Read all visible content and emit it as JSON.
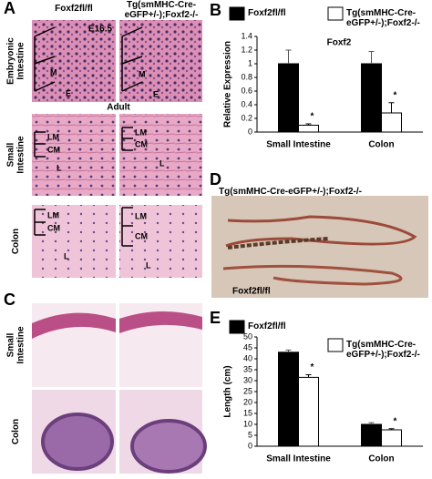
{
  "panels": {
    "A": {
      "letter": "A",
      "col_headers": [
        "Foxf2fl/fl",
        "Tg(smMHC-Cre-eGFP+/-);Foxf2-/-"
      ],
      "row_labels": [
        [
          "Embryonic",
          "Intestine"
        ],
        [
          "Small",
          "Intestine"
        ],
        [
          "Colon"
        ]
      ],
      "stage_labels": [
        "E16.5",
        "Adult"
      ],
      "region_labels": [
        "M",
        "E",
        "LM",
        "CM",
        "L"
      ]
    },
    "B": {
      "letter": "B"
    },
    "C": {
      "letter": "C",
      "row_labels": [
        [
          "Small",
          "Intestine"
        ],
        [
          "Colon"
        ]
      ]
    },
    "D": {
      "letter": "D",
      "labels": [
        "Tg(smMHC-Cre-eGFP+/-);Foxf2-/-",
        "Foxf2fl/fl"
      ]
    },
    "E": {
      "letter": "E"
    }
  },
  "chart_data": [
    {
      "type": "bar",
      "title": "Foxf2",
      "y_label": "Relative Expression",
      "categories": [
        "Small Intestine",
        "Colon"
      ],
      "series": [
        {
          "name": "Foxf2fl/fl",
          "color": "#000000",
          "values": [
            1,
            1
          ],
          "errors": [
            0.2,
            0.18
          ]
        },
        {
          "name": "Tg(smMHC-Cre-eGFP+/-);Foxf2-/-",
          "color": "#ffffff",
          "values": [
            0.1,
            0.28
          ],
          "errors": [
            0.02,
            0.15
          ]
        }
      ],
      "significance": [
        "*",
        "*"
      ],
      "ylim": [
        0,
        1.4
      ],
      "yticks": [
        0,
        0.2,
        0.4,
        0.6,
        0.8,
        1,
        1.2,
        1.4
      ]
    },
    {
      "type": "bar",
      "y_label": "Length (cm)",
      "categories": [
        "Small Intestine",
        "Colon"
      ],
      "series": [
        {
          "name": "Foxf2fl/fl",
          "color": "#000000",
          "values": [
            43,
            10
          ],
          "errors": [
            1,
            0.8
          ]
        },
        {
          "name": "Tg(smMHC-Cre-eGFP+/-);Foxf2-/-",
          "color": "#ffffff",
          "values": [
            31.5,
            7.5
          ],
          "errors": [
            1.2,
            0.5
          ]
        }
      ],
      "significance": [
        "*",
        "*"
      ],
      "ylim": [
        0,
        50
      ],
      "yticks": [
        0,
        5,
        10,
        15,
        20,
        25,
        30,
        35,
        40,
        45,
        50
      ]
    }
  ]
}
